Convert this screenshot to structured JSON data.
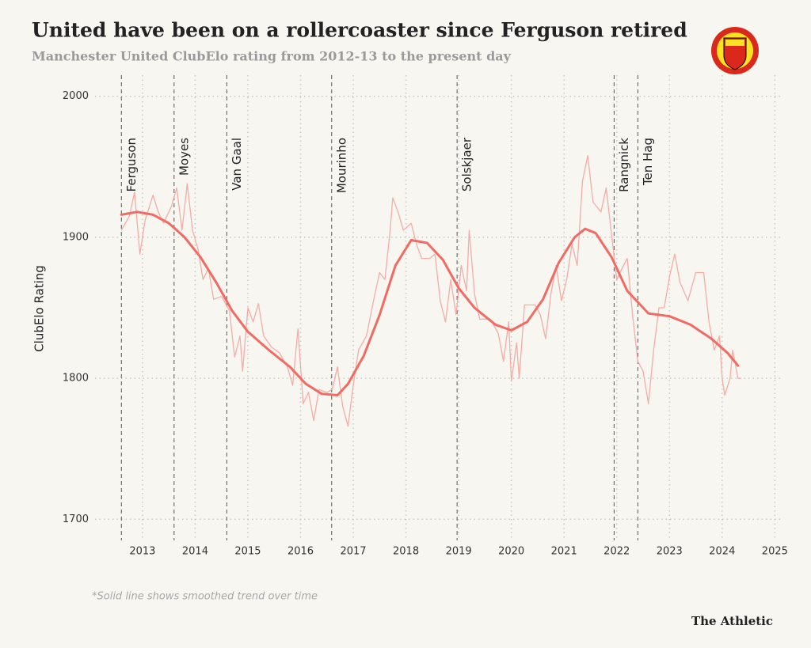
{
  "chart_data": {
    "type": "line",
    "title": "United have been on a rollercoaster since Ferguson retired",
    "subtitle": "Manchester United ClubElo rating from 2012-13 to the present day",
    "y_label": "ClubElo Rating",
    "footnote": "*Solid line shows smoothed trend over time",
    "source": "The Athletic",
    "xlim": [
      2012.1,
      2025.1
    ],
    "xticks": [
      2013,
      2014,
      2015,
      2016,
      2017,
      2018,
      2019,
      2020,
      2021,
      2022,
      2023,
      2024,
      2025
    ],
    "ylim": [
      1685,
      2015
    ],
    "yticks": [
      1700,
      1800,
      1900,
      2000
    ],
    "grid": true,
    "managers": [
      {
        "name": "Ferguson",
        "start": 2012.6
      },
      {
        "name": "Moyes",
        "start": 2013.6
      },
      {
        "name": "Van Gaal",
        "start": 2014.6
      },
      {
        "name": "Mourinho",
        "start": 2016.59
      },
      {
        "name": "Solskjaer",
        "start": 2018.97
      },
      {
        "name": "Rangnick",
        "start": 2021.95
      },
      {
        "name": "Ten Hag",
        "start": 2022.4
      }
    ],
    "series": [
      {
        "color": "#f5aca8",
        "width": 1.3,
        "x": [
          2012.6,
          2012.75,
          2012.85,
          2012.95,
          2013.05,
          2013.2,
          2013.3,
          2013.4,
          2013.55,
          2013.65,
          2013.75,
          2013.85,
          2013.95,
          2014.05,
          2014.15,
          2014.25,
          2014.35,
          2014.5,
          2014.65,
          2014.75,
          2014.85,
          2014.9,
          2015.0,
          2015.1,
          2015.2,
          2015.3,
          2015.45,
          2015.6,
          2015.75,
          2015.85,
          2015.95,
          2016.05,
          2016.15,
          2016.25,
          2016.35,
          2016.5,
          2016.6,
          2016.7,
          2016.8,
          2016.9,
          2017.0,
          2017.1,
          2017.25,
          2017.4,
          2017.5,
          2017.6,
          2017.7,
          2017.75,
          2017.85,
          2017.95,
          2018.1,
          2018.2,
          2018.3,
          2018.45,
          2018.55,
          2018.65,
          2018.75,
          2018.85,
          2018.95,
          2019.05,
          2019.15,
          2019.2,
          2019.3,
          2019.4,
          2019.6,
          2019.75,
          2019.85,
          2019.95,
          2020.0,
          2020.1,
          2020.15,
          2020.25,
          2020.45,
          2020.55,
          2020.65,
          2020.75,
          2020.85,
          2020.95,
          2021.05,
          2021.15,
          2021.25,
          2021.35,
          2021.45,
          2021.55,
          2021.7,
          2021.8,
          2021.9,
          2022.0,
          2022.1,
          2022.2,
          2022.3,
          2022.4,
          2022.5,
          2022.6,
          2022.7,
          2022.8,
          2022.9,
          2023.0,
          2023.1,
          2023.2,
          2023.35,
          2023.5,
          2023.65,
          2023.75,
          2023.85,
          2023.95,
          2024.0,
          2024.05,
          2024.15,
          2024.2,
          2024.3,
          2024.35
        ],
        "values": [
          1905,
          1915,
          1932,
          1888,
          1912,
          1930,
          1918,
          1910,
          1922,
          1935,
          1905,
          1938,
          1905,
          1892,
          1870,
          1878,
          1856,
          1858,
          1848,
          1815,
          1830,
          1805,
          1850,
          1840,
          1853,
          1830,
          1822,
          1818,
          1808,
          1795,
          1835,
          1782,
          1790,
          1770,
          1792,
          1790,
          1792,
          1808,
          1780,
          1766,
          1795,
          1820,
          1830,
          1858,
          1875,
          1870,
          1905,
          1928,
          1918,
          1905,
          1910,
          1895,
          1885,
          1885,
          1888,
          1855,
          1840,
          1870,
          1845,
          1880,
          1862,
          1905,
          1860,
          1842,
          1842,
          1832,
          1812,
          1840,
          1798,
          1825,
          1800,
          1852,
          1852,
          1845,
          1828,
          1860,
          1880,
          1855,
          1870,
          1895,
          1880,
          1940,
          1958,
          1925,
          1918,
          1935,
          1902,
          1870,
          1878,
          1885,
          1845,
          1812,
          1805,
          1782,
          1820,
          1850,
          1850,
          1872,
          1888,
          1868,
          1855,
          1875,
          1875,
          1840,
          1820,
          1830,
          1800,
          1788,
          1800,
          1820,
          1800,
          1800
        ]
      },
      {
        "color": "#f26b63",
        "width": 3,
        "x": [
          2012.6,
          2012.9,
          2013.2,
          2013.5,
          2013.8,
          2014.1,
          2014.4,
          2014.7,
          2015.0,
          2015.4,
          2015.8,
          2016.1,
          2016.4,
          2016.7,
          2016.9,
          2017.2,
          2017.5,
          2017.8,
          2018.1,
          2018.4,
          2018.7,
          2019.0,
          2019.3,
          2019.7,
          2020.0,
          2020.3,
          2020.6,
          2020.9,
          2021.2,
          2021.4,
          2021.6,
          2021.9,
          2022.2,
          2022.6,
          2023.0,
          2023.4,
          2023.8,
          2024.1,
          2024.3
        ],
        "values": [
          1916,
          1918,
          1916,
          1910,
          1900,
          1886,
          1868,
          1848,
          1833,
          1820,
          1808,
          1796,
          1789,
          1788,
          1796,
          1816,
          1845,
          1880,
          1898,
          1896,
          1884,
          1864,
          1850,
          1838,
          1834,
          1840,
          1856,
          1882,
          1900,
          1906,
          1903,
          1886,
          1862,
          1846,
          1844,
          1838,
          1828,
          1818,
          1809
        ]
      }
    ]
  }
}
